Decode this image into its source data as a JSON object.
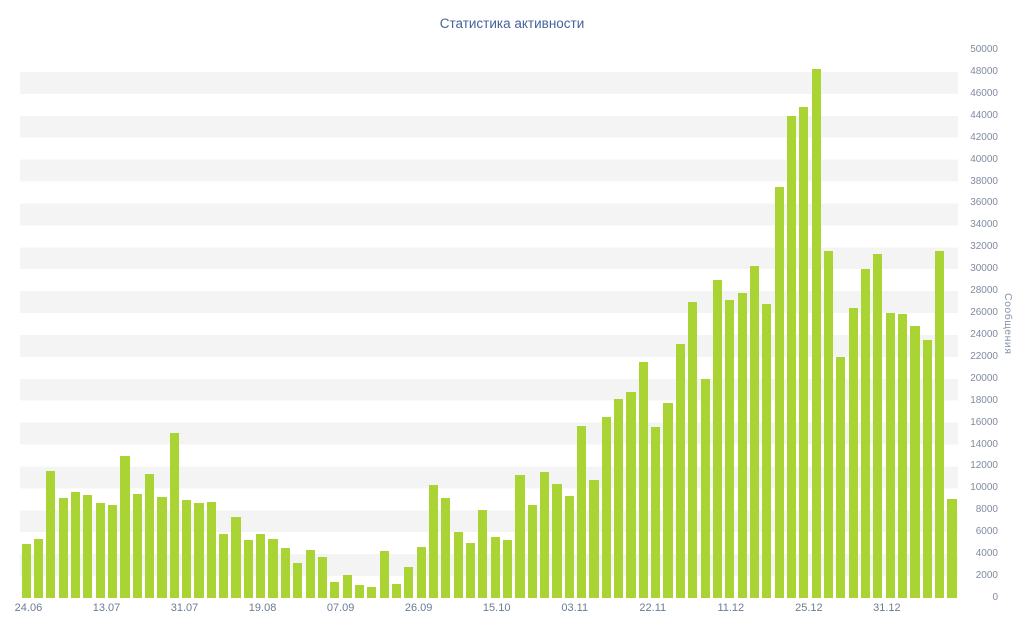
{
  "page": {
    "title": "Статистика активности"
  },
  "colors": {
    "bar": "#a9d434",
    "title_text": "#44639c",
    "axis_text": "#7f8ca0",
    "band_gray": "#f4f4f4",
    "background": "#ffffff"
  },
  "chart_data": {
    "type": "bar",
    "title": "Статистика активности",
    "xlabel": "",
    "ylabel": "Сообщения",
    "ylim": [
      0,
      50000
    ],
    "y_tick_step": 2000,
    "grid": "alternating horizontal bands, no lines",
    "legend": "none",
    "y_ticks": [
      "0",
      "2000",
      "4000",
      "6000",
      "8000",
      "10000",
      "12000",
      "14000",
      "16000",
      "18000",
      "20000",
      "22000",
      "24000",
      "26000",
      "28000",
      "30000",
      "32000",
      "34000",
      "36000",
      "38000",
      "40000",
      "42000",
      "44000",
      "46000",
      "48000",
      "50000"
    ],
    "x_ticks": [
      "24.06",
      "13.07",
      "31.07",
      "19.08",
      "07.09",
      "26.09",
      "15.10",
      "03.11",
      "22.11",
      "11.12",
      "25.12",
      "31.12"
    ],
    "values": [
      4900,
      5400,
      11600,
      9100,
      9700,
      9400,
      8700,
      8500,
      13000,
      9500,
      11300,
      9200,
      15100,
      8900,
      8700,
      8800,
      5800,
      7400,
      5300,
      5800,
      5400,
      4600,
      3200,
      4400,
      3700,
      1500,
      2100,
      1200,
      1000,
      4300,
      1300,
      2800,
      4700,
      10300,
      9100,
      6000,
      5000,
      8000,
      5600,
      5300,
      11200,
      8500,
      11500,
      10400,
      9300,
      15700,
      10800,
      16500,
      18200,
      18800,
      21500,
      15600,
      17800,
      23200,
      27000,
      20000,
      29000,
      27200,
      27800,
      30300,
      26800,
      37500,
      44000,
      44800,
      48300,
      31700,
      22000,
      26500,
      30000,
      31400,
      26000,
      25900,
      24800,
      23500,
      31700,
      9000
    ]
  }
}
